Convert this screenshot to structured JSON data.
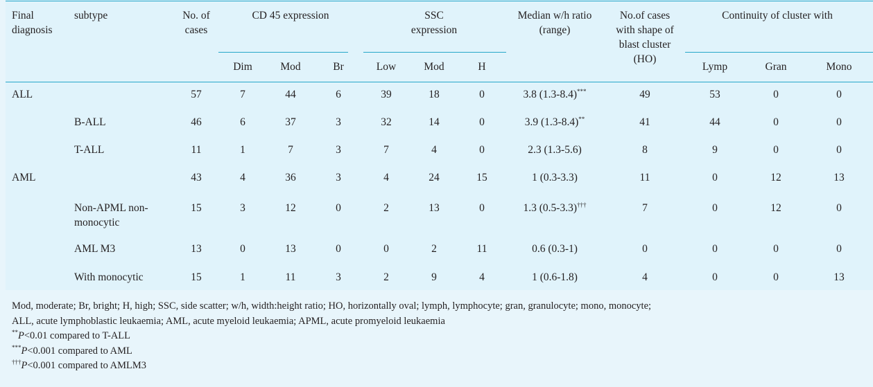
{
  "table": {
    "headers": {
      "final_diagnosis": "Final diagnosis",
      "subtype": "subtype",
      "no_of_cases": "No. of cases",
      "cd45": "CD 45 expression",
      "ssc": "SSC expression",
      "median_ratio": "Median w/h ratio (range)",
      "ho_cases": "No.of cases with shape of blast cluster (HO)",
      "continuity": "Continuity of cluster with",
      "sub": [
        "Dim",
        "Mod",
        "Br",
        "Low",
        "Mod",
        "H",
        "Lymp",
        "Gran",
        "Mono"
      ]
    },
    "rows": [
      {
        "diagnosis": "ALL",
        "subtype": "",
        "cases": "57",
        "dim": "7",
        "mod": "44",
        "br": "6",
        "low": "39",
        "ssc_mod": "18",
        "h": "0",
        "ratio": "3.8 (1.3-8.4)",
        "ratio_mark": "***",
        "ho": "49",
        "lymp": "53",
        "gran": "0",
        "mono": "0"
      },
      {
        "diagnosis": "",
        "subtype": "B-ALL",
        "cases": "46",
        "dim": "6",
        "mod": "37",
        "br": "3",
        "low": "32",
        "ssc_mod": "14",
        "h": "0",
        "ratio": "3.9 (1.3-8.4)",
        "ratio_mark": "**",
        "ho": "41",
        "lymp": "44",
        "gran": "0",
        "mono": "0"
      },
      {
        "diagnosis": "",
        "subtype": "T-ALL",
        "cases": "11",
        "dim": "1",
        "mod": "7",
        "br": "3",
        "low": "7",
        "ssc_mod": "4",
        "h": "0",
        "ratio": "2.3 (1.3-5.6)",
        "ratio_mark": "",
        "ho": "8",
        "lymp": "9",
        "gran": "0",
        "mono": "0"
      },
      {
        "diagnosis": "AML",
        "subtype": "",
        "cases": "43",
        "dim": "4",
        "mod": "36",
        "br": "3",
        "low": "4",
        "ssc_mod": "24",
        "h": "15",
        "ratio": "1 (0.3-3.3)",
        "ratio_mark": "",
        "ho": "11",
        "lymp": "0",
        "gran": "12",
        "mono": "13"
      },
      {
        "diagnosis": "",
        "subtype": "Non-APML non-monocytic",
        "cases": "15",
        "dim": "3",
        "mod": "12",
        "br": "0",
        "low": "2",
        "ssc_mod": "13",
        "h": "0",
        "ratio": "1.3 (0.5-3.3)",
        "ratio_mark": "†††",
        "ho": "7",
        "lymp": "0",
        "gran": "12",
        "mono": "0"
      },
      {
        "diagnosis": "",
        "subtype": "AML M3",
        "cases": "13",
        "dim": "0",
        "mod": "13",
        "br": "0",
        "low": "0",
        "ssc_mod": "2",
        "h": "11",
        "ratio": "0.6 (0.3-1)",
        "ratio_mark": "",
        "ho": "0",
        "lymp": "0",
        "gran": "0",
        "mono": "0"
      },
      {
        "diagnosis": "",
        "subtype": "With monocytic",
        "cases": "15",
        "dim": "1",
        "mod": "11",
        "br": "3",
        "low": "2",
        "ssc_mod": "9",
        "h": "4",
        "ratio": "1 (0.6-1.8)",
        "ratio_mark": "",
        "ho": "4",
        "lymp": "0",
        "gran": "0",
        "mono": "13"
      }
    ]
  },
  "footnotes": {
    "abbrev_line1": "Mod, moderate; Br, bright; H, high; SSC, side scatter; w/h, width:height ratio; HO, horizontally oval; lymph, lymphocyte; gran, granulocyte; mono, monocyte;",
    "abbrev_line2": "ALL, acute lymphoblastic leukaemia; AML, acute myeloid leukaemia; APML, acute promyeloid leukaemia",
    "note1": {
      "mark": "**",
      "p": "P",
      "text": "<0.01 compared to T-ALL"
    },
    "note2": {
      "mark": "***",
      "p": "P",
      "text": "<0.001 compared to AML"
    },
    "note3": {
      "mark": "†††",
      "p": "P",
      "text": "<0.001 compared to AMLM3"
    }
  },
  "colors": {
    "background": "#e8f5fb",
    "panel": "#e0f3fb",
    "rule": "#25a6c9",
    "text": "#231f20"
  }
}
